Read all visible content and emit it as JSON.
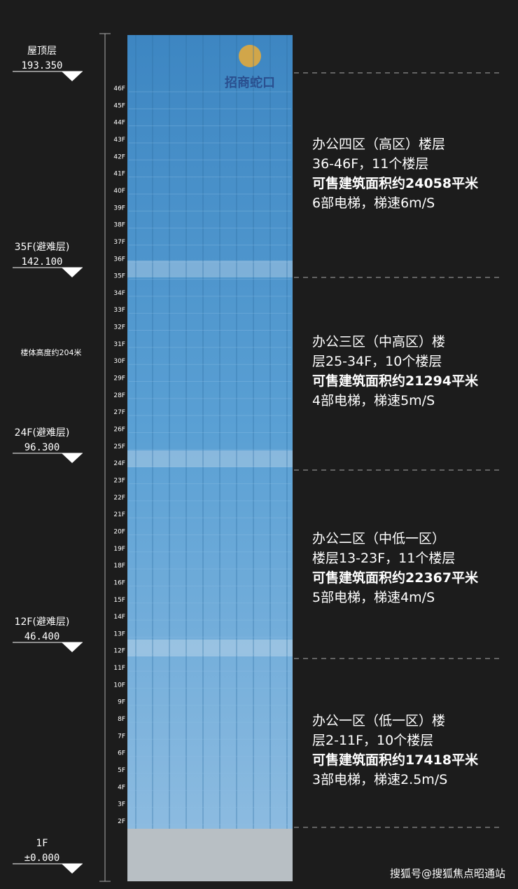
{
  "levels": [
    {
      "name": "屋顶层",
      "elevation": "193.350"
    },
    {
      "name": "35F(避难层)",
      "elevation": "142.100"
    },
    {
      "name": "24F(避难层)",
      "elevation": "96.300"
    },
    {
      "name": "12F(避难层)",
      "elevation": "46.400"
    },
    {
      "name": "1F",
      "elevation": "±0.000"
    }
  ],
  "height_note": "楼体高度约204米",
  "logo": "招商蛇口",
  "floors": [
    "46F",
    "45F",
    "44F",
    "43F",
    "42F",
    "41F",
    "40F",
    "39F",
    "38F",
    "37F",
    "36F",
    "35F",
    "34F",
    "33F",
    "32F",
    "31F",
    "30F",
    "29F",
    "28F",
    "27F",
    "26F",
    "25F",
    "24F",
    "23F",
    "22F",
    "21F",
    "20F",
    "19F",
    "18F",
    "16F",
    "15F",
    "14F",
    "13F",
    "12F",
    "11F",
    "10F",
    "9F",
    "8F",
    "7F",
    "6F",
    "5F",
    "4F",
    "3F",
    "2F"
  ],
  "zones": [
    {
      "lines": [
        "办公四区（高区）楼层",
        "36-46F，11个楼层",
        "可售建筑面积约24058平米",
        "6部电梯，梯速6m/S"
      ]
    },
    {
      "lines": [
        "办公三区（中高区）楼",
        "层25-34F，10个楼层",
        "可售建筑面积约21294平米",
        "4部电梯，梯速5m/S"
      ]
    },
    {
      "lines": [
        "办公二区（中低一区）",
        "楼层13-23F，11个楼层",
        "可售建筑面积约22367平米",
        "5部电梯，梯速4m/S"
      ]
    },
    {
      "lines": [
        "办公一区（低一区）楼",
        "层2-11F，10个楼层",
        "可售建筑面积约17418平米",
        "3部电梯，梯速2.5m/S"
      ]
    }
  ],
  "watermark": "搜狐号@搜狐焦点昭通站"
}
